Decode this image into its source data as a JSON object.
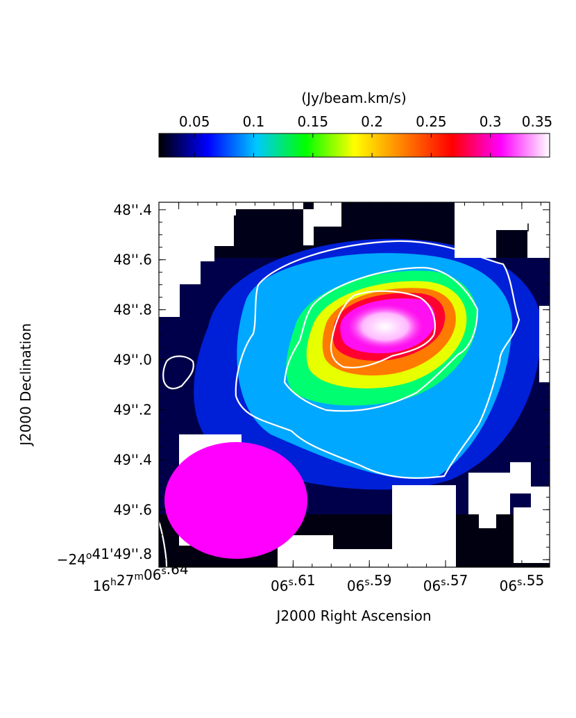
{
  "chart_data": {
    "type": "heatmap",
    "title": "",
    "colorbar": {
      "title": "(Jy/beam.km/s)",
      "range": [
        0.02,
        0.35
      ],
      "ticks": [
        "0.05",
        "0.1",
        "0.15",
        "0.2",
        "0.25",
        "0.3",
        "0.35"
      ],
      "tick_values": [
        0.05,
        0.1,
        0.15,
        0.2,
        0.25,
        0.3,
        0.35
      ],
      "colormap": [
        "#000000",
        "#0000ff",
        "#00c8ff",
        "#00ff00",
        "#ffff00",
        "#ff8000",
        "#ff0000",
        "#ff00ff",
        "#ffffff"
      ]
    },
    "xlabel": "J2000 Right Ascension",
    "ylabel": "J2000 Declination",
    "xaxis": {
      "direction": "decreasing",
      "range": [
        16.6452,
        16.5427
      ],
      "tick_values": [
        16.64,
        16.61,
        16.59,
        16.57,
        16.55
      ],
      "ticks": [
        {
          "h": "16",
          "m": "27",
          "s": "06",
          "frac": ".64"
        },
        {
          "h": "",
          "m": "",
          "s": "06",
          "frac": ".61"
        },
        {
          "h": "",
          "m": "",
          "s": "06",
          "frac": ".59"
        },
        {
          "h": "",
          "m": "",
          "s": "06",
          "frac": ".57"
        },
        {
          "h": "",
          "m": "",
          "s": "06",
          "frac": ".55"
        }
      ]
    },
    "yaxis": {
      "range": [
        49.83,
        48.37
      ],
      "tick_values": [
        48.4,
        48.6,
        48.8,
        49.0,
        49.2,
        49.4,
        49.6,
        49.8
      ],
      "ticks": [
        {
          "deg": "",
          "min": "",
          "sec": "48",
          "frac": ".4"
        },
        {
          "deg": "",
          "min": "",
          "sec": "48",
          "frac": ".6"
        },
        {
          "deg": "",
          "min": "",
          "sec": "48",
          "frac": ".8"
        },
        {
          "deg": "",
          "min": "",
          "sec": "49",
          "frac": ".0"
        },
        {
          "deg": "",
          "min": "",
          "sec": "49",
          "frac": ".2"
        },
        {
          "deg": "",
          "min": "",
          "sec": "49",
          "frac": ".4"
        },
        {
          "deg": "",
          "min": "",
          "sec": "49",
          "frac": ".6"
        },
        {
          "deg": "−24",
          "min": "41",
          "sec": "49",
          "frac": ".8"
        }
      ]
    },
    "source_peak": {
      "ra_s": 16.583,
      "dec_s": 48.87,
      "value": 0.35
    },
    "contour_levels_approx": [
      0.1,
      0.2,
      0.3
    ],
    "beam": {
      "ra_center_s": 16.6365,
      "dec_center_s": 49.58,
      "color": "#ff00ff"
    },
    "bar_marker": "I"
  }
}
